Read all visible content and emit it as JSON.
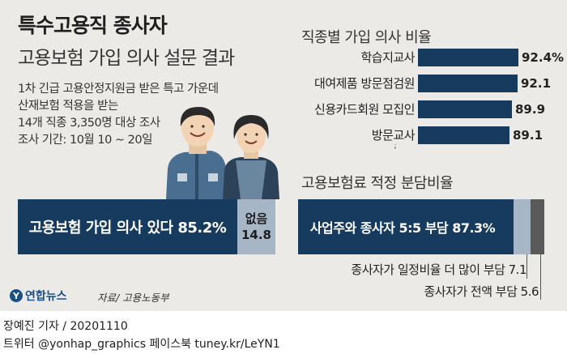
{
  "title": "특수고용직 종사자",
  "subtitle": "고용보험 가입 의사 설문 결과",
  "description": [
    "1차 긴급 고용안정지원금 받은 특고 가운데",
    "산재보험 적용을 받는",
    "14개 직종 3,350명 대상 조사",
    "조사 기간: 10월 10 ~ 20일"
  ],
  "chart_data": [
    {
      "type": "bar",
      "title": "고용보험 가입 의사 있다",
      "categories": [
        "고용보험 가입 의사 있다",
        "없음"
      ],
      "values": [
        85.2,
        14.8
      ],
      "labels": [
        "고용보험 가입 의사 있다 85.2%",
        "없음",
        "14.8"
      ],
      "colors": [
        "#173b5e",
        "#a7b6c6"
      ]
    },
    {
      "type": "bar",
      "title": "직종별 가입 의사 비율",
      "categories": [
        "학습지교사",
        "대여제품 방문점검원",
        "신용카드회원 모집인",
        "방문교사"
      ],
      "values": [
        92.4,
        92.1,
        89.9,
        89.1
      ],
      "value_labels": [
        "92.4%",
        "92.1",
        "89.9",
        "89.1"
      ],
      "more": "⋮",
      "color": "#173b5e"
    },
    {
      "type": "bar",
      "title": "고용보험료 적정 분담비율",
      "categories": [
        "사업주와 종사자 5:5 부담",
        "종사자가 일정비율 더 많이 부담",
        "종사자가 전액 부담"
      ],
      "values": [
        87.3,
        7.1,
        5.6
      ],
      "labels": [
        "사업주와 종사자 5:5 부담 87.3%",
        "종사자가 일정비율 더 많이 부담 7.1",
        "종사자가 전액 부담 5.6"
      ],
      "colors": [
        "#173b5e",
        "#a7b6c6",
        "#5a5a5a"
      ]
    }
  ],
  "logo_text": "연합뉴스",
  "source": "자료/ 고용노동부",
  "byline": "장예진 기자 / 20201110",
  "social": "트위터 @yonhap_graphics  페이스북 tuney.kr/LeYN1"
}
